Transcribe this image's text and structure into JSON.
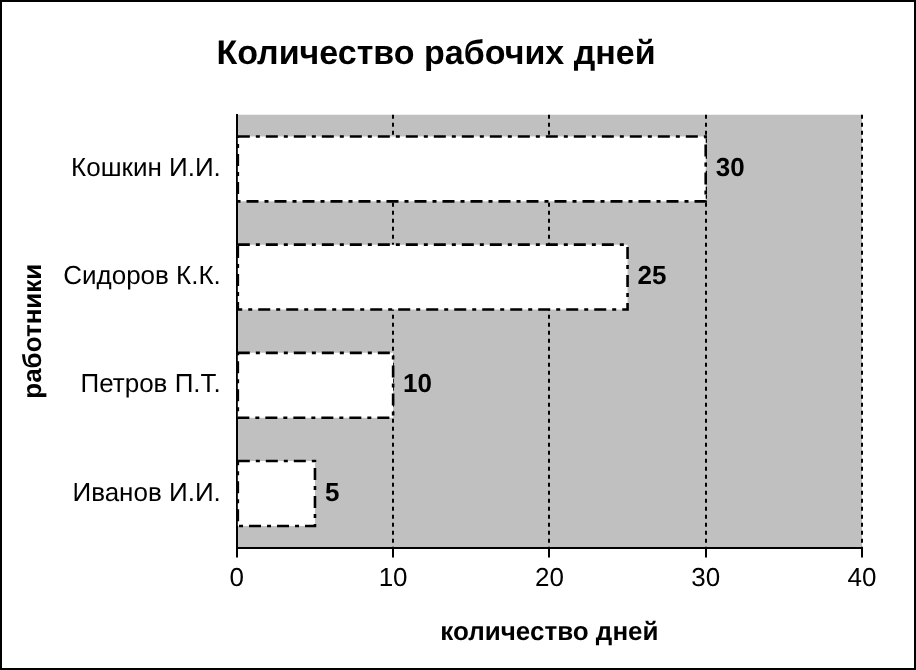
{
  "chart_data": {
    "type": "bar",
    "orientation": "horizontal",
    "title": "Количество рабочих дней",
    "xlabel": "количество дней",
    "ylabel": "работники",
    "categories": [
      "Кошкин И.И.",
      "Сидоров К.К.",
      "Петров П.Т.",
      "Иванов И.И."
    ],
    "values": [
      30,
      25,
      10,
      5
    ],
    "color": "#ffffff",
    "xlim": [
      0,
      40
    ],
    "xticks": [
      0,
      10,
      20,
      30,
      40
    ],
    "grid": "x",
    "line_style": "dashed",
    "legend": false,
    "data_labels": true
  }
}
